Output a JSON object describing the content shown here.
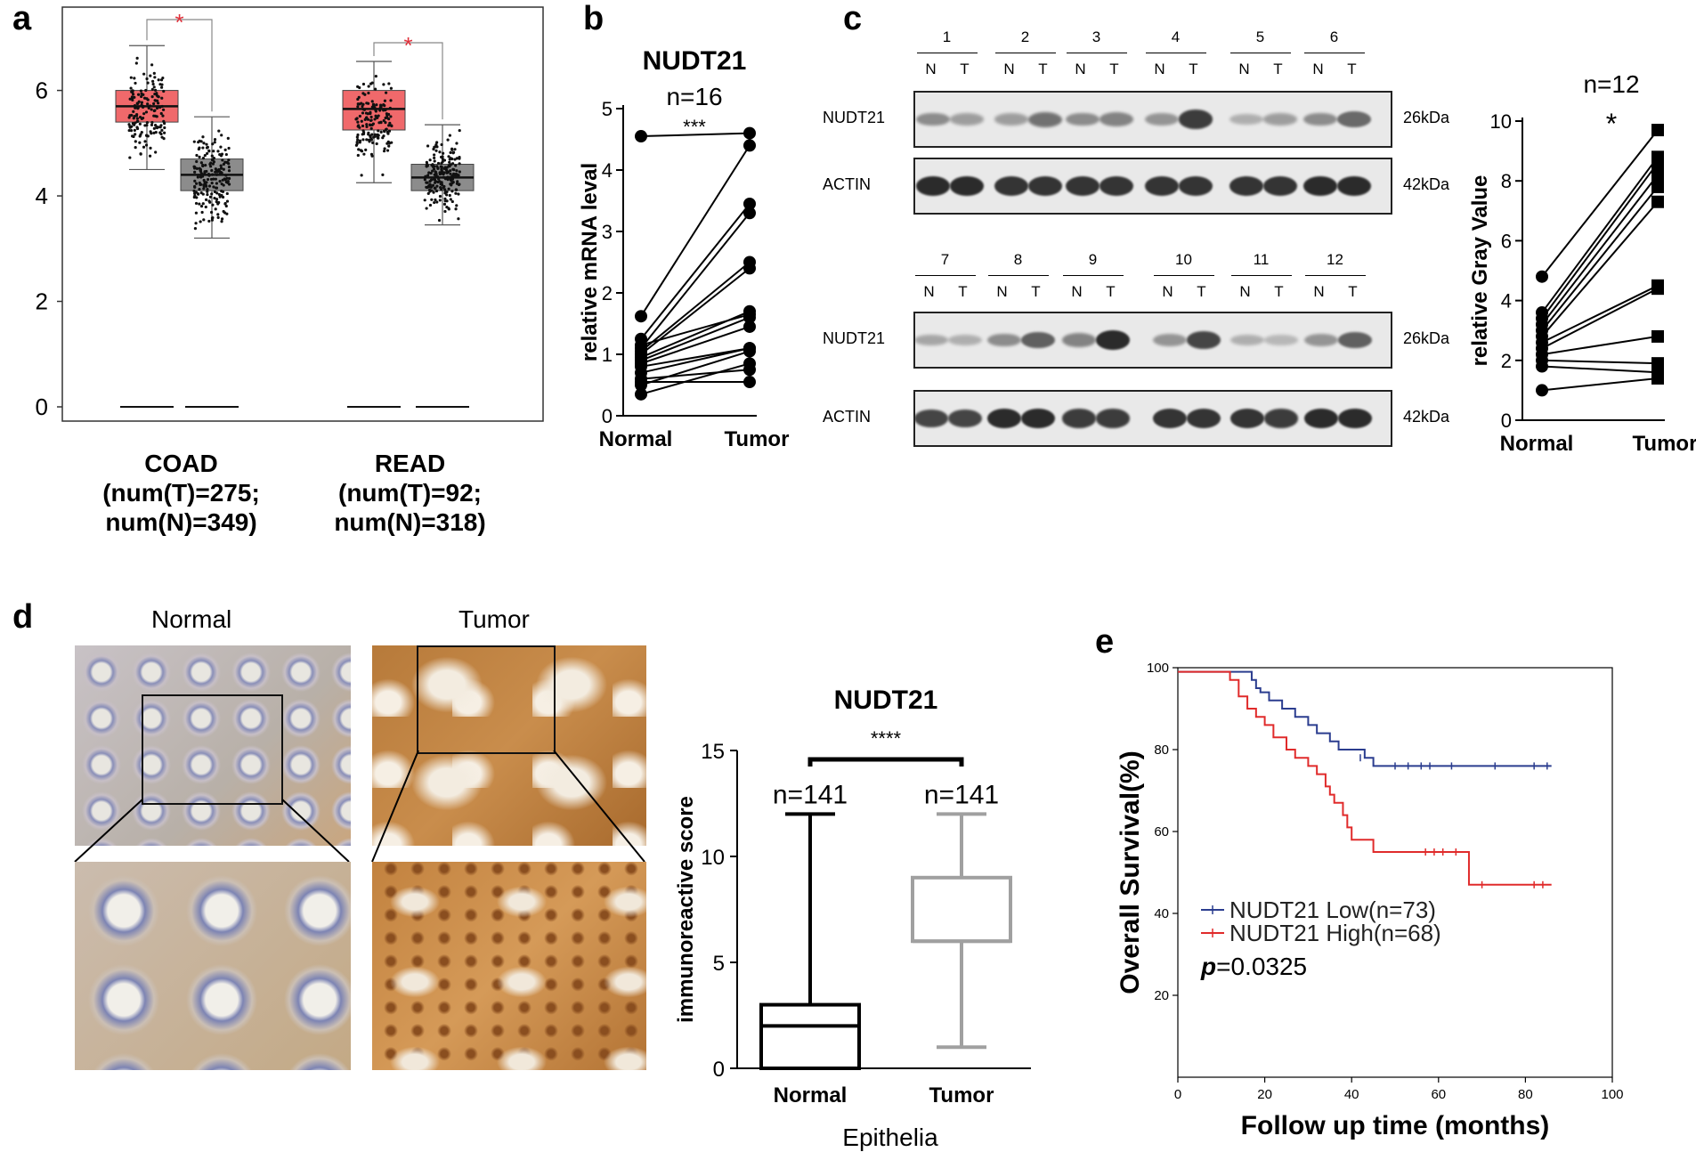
{
  "panels": {
    "a": {
      "letter": "a",
      "chart_data": {
        "type": "box",
        "yticks": [
          "0",
          "2",
          "4",
          "6"
        ],
        "ylim": [
          0,
          7.5
        ],
        "groups": [
          {
            "label_lines": [
              "COAD",
              "(num(T)=275;",
              "num(N)=349)"
            ],
            "tumor": {
              "min": 4.5,
              "q1": 5.4,
              "median": 5.7,
              "q3": 6.0,
              "max": 6.85,
              "color": "#f0696b"
            },
            "normal": {
              "min": 3.2,
              "q1": 4.1,
              "median": 4.4,
              "q3": 4.7,
              "max": 5.5,
              "color": "#8c8c8c"
            },
            "sig": "*"
          },
          {
            "label_lines": [
              "READ",
              "(num(T)=92;",
              "num(N)=318)"
            ],
            "tumor": {
              "min": 4.25,
              "q1": 5.25,
              "median": 5.65,
              "q3": 6.0,
              "max": 6.55,
              "color": "#f0696b"
            },
            "normal": {
              "min": 3.45,
              "q1": 4.1,
              "median": 4.35,
              "q3": 4.6,
              "max": 5.35,
              "color": "#8c8c8c"
            },
            "sig": "*"
          }
        ]
      }
    },
    "b": {
      "letter": "b",
      "chart_data": {
        "type": "paired-line",
        "title": "NUDT21",
        "n_label": "n=16",
        "sig": "***",
        "ylabel": "relative mRNA leval",
        "categories": [
          "Normal",
          "Tumor"
        ],
        "yticks": [
          "0",
          "1",
          "2",
          "3",
          "4",
          "5"
        ],
        "ylim": [
          0,
          5
        ],
        "pairs": [
          [
            4.55,
            4.6
          ],
          [
            1.62,
            4.4
          ],
          [
            1.25,
            3.45
          ],
          [
            1.1,
            3.3
          ],
          [
            1.05,
            2.5
          ],
          [
            1.0,
            2.4
          ],
          [
            0.95,
            1.7
          ],
          [
            0.9,
            1.6
          ],
          [
            0.85,
            1.45
          ],
          [
            0.8,
            1.1
          ],
          [
            0.7,
            1.1
          ],
          [
            0.6,
            0.75
          ],
          [
            0.55,
            0.55
          ],
          [
            0.5,
            1.05
          ],
          [
            0.35,
            0.85
          ],
          [
            1.15,
            1.65
          ]
        ]
      }
    },
    "c": {
      "letter": "c",
      "blot_top": {
        "lanes": [
          "1",
          "2",
          "3",
          "4",
          "5",
          "6"
        ],
        "nt": [
          "N",
          "T"
        ],
        "rows": [
          {
            "name": "NUDT21",
            "kda": "26kDa",
            "intensity": [
              0.35,
              0.25,
              0.25,
              0.5,
              0.35,
              0.4,
              0.3,
              0.8,
              0.15,
              0.25,
              0.35,
              0.55
            ]
          },
          {
            "name": "ACTIN",
            "kda": "42kDa",
            "intensity": [
              0.9,
              0.9,
              0.85,
              0.85,
              0.85,
              0.85,
              0.85,
              0.85,
              0.85,
              0.85,
              0.9,
              0.9
            ]
          }
        ]
      },
      "blot_bottom": {
        "lanes": [
          "7",
          "8",
          "9",
          "10",
          "11",
          "12"
        ],
        "nt": [
          "N",
          "T"
        ],
        "rows": [
          {
            "name": "NUDT21",
            "kda": "26kDa",
            "intensity": [
              0.2,
              0.15,
              0.35,
              0.6,
              0.4,
              0.9,
              0.3,
              0.75,
              0.15,
              0.1,
              0.3,
              0.6
            ]
          },
          {
            "name": "ACTIN",
            "kda": "42kDa",
            "intensity": [
              0.75,
              0.75,
              0.9,
              0.9,
              0.8,
              0.8,
              0.85,
              0.85,
              0.85,
              0.8,
              0.9,
              0.9
            ]
          }
        ]
      },
      "chart_data": {
        "type": "paired-line",
        "n_label": "n=12",
        "sig": "*",
        "ylabel": "relative Gray Value",
        "categories": [
          "Normal",
          "Tumor"
        ],
        "yticks": [
          "0",
          "2",
          "4",
          "6",
          "8",
          "10"
        ],
        "ylim": [
          0,
          10
        ],
        "pairs": [
          [
            4.8,
            9.7
          ],
          [
            3.6,
            8.8
          ],
          [
            3.4,
            8.6
          ],
          [
            3.2,
            8.2
          ],
          [
            3.0,
            7.8
          ],
          [
            2.8,
            7.3
          ],
          [
            2.6,
            4.5
          ],
          [
            2.4,
            4.4
          ],
          [
            2.2,
            2.8
          ],
          [
            2.0,
            1.9
          ],
          [
            1.8,
            1.6
          ],
          [
            1.0,
            1.4
          ]
        ]
      }
    },
    "d": {
      "letter": "d",
      "images": {
        "normal_title": "Normal",
        "tumor_title": "Tumor"
      },
      "chart_data": {
        "type": "box",
        "title": "NUDT21",
        "sig": "****",
        "ylabel": "immunoreactive score",
        "xlabel": "Epithelia",
        "categories": [
          "Normal",
          "Tumor"
        ],
        "n_labels": [
          "n=141",
          "n=141"
        ],
        "yticks": [
          "0",
          "5",
          "10",
          "15"
        ],
        "ylim": [
          0,
          15
        ],
        "boxes": [
          {
            "min": 0,
            "q1": 0,
            "median": 2,
            "q3": 3,
            "max": 12,
            "color": "#000000"
          },
          {
            "min": 1,
            "q1": 6,
            "median": 6,
            "q3": 9,
            "max": 12,
            "color": "#a0a0a0"
          }
        ]
      }
    },
    "e": {
      "letter": "e",
      "chart_data": {
        "type": "line",
        "ylabel": "Overall Survival(%)",
        "xlabel": "Follow up time (months)",
        "xticks": [
          "0",
          "20",
          "40",
          "60",
          "80",
          "100"
        ],
        "yticks": [
          "20",
          "40",
          "60",
          "80",
          "100"
        ],
        "xlim": [
          0,
          100
        ],
        "ylim": [
          0,
          100
        ],
        "series": [
          {
            "name": "NUDT21 Low(n=73)",
            "color": "#2b3d8f",
            "steps": [
              [
                0,
                99
              ],
              [
                16,
                99
              ],
              [
                17,
                97
              ],
              [
                18,
                95
              ],
              [
                19,
                94
              ],
              [
                21,
                92
              ],
              [
                24,
                90
              ],
              [
                27,
                88
              ],
              [
                30,
                86
              ],
              [
                32,
                84
              ],
              [
                35,
                82
              ],
              [
                37,
                80
              ],
              [
                40,
                80
              ],
              [
                43,
                78
              ],
              [
                45,
                76
              ],
              [
                86,
                76
              ]
            ],
            "censor": [
              [
                42,
                78
              ],
              [
                50,
                76
              ],
              [
                53,
                76
              ],
              [
                56,
                76
              ],
              [
                58,
                76
              ],
              [
                63,
                76
              ],
              [
                73,
                76
              ],
              [
                82,
                76
              ],
              [
                85,
                76
              ]
            ]
          },
          {
            "name": "NUDT21 High(n=68)",
            "color": "#e02b2b",
            "steps": [
              [
                0,
                99
              ],
              [
                10,
                99
              ],
              [
                12,
                97
              ],
              [
                14,
                93
              ],
              [
                16,
                90
              ],
              [
                18,
                88
              ],
              [
                20,
                86
              ],
              [
                22,
                83
              ],
              [
                25,
                80
              ],
              [
                27,
                78
              ],
              [
                30,
                76
              ],
              [
                32,
                74
              ],
              [
                34,
                71
              ],
              [
                35,
                69
              ],
              [
                36,
                67
              ],
              [
                38,
                64
              ],
              [
                39,
                61
              ],
              [
                40,
                58
              ],
              [
                44,
                58
              ],
              [
                45,
                55
              ],
              [
                66,
                55
              ],
              [
                67,
                47
              ],
              [
                86,
                47
              ]
            ],
            "censor": [
              [
                57,
                55
              ],
              [
                59,
                55
              ],
              [
                61,
                55
              ],
              [
                64,
                55
              ],
              [
                70,
                47
              ],
              [
                82,
                47
              ],
              [
                84,
                47
              ]
            ]
          }
        ],
        "p_label": "p",
        "p_value": "=0.0325"
      }
    }
  }
}
